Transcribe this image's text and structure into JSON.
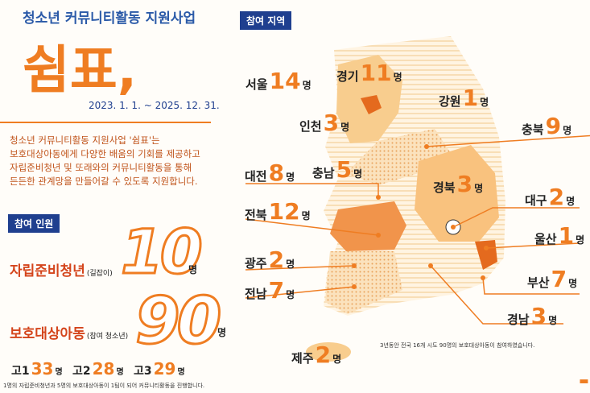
{
  "header": {
    "title": "청소년 커뮤니티활동 지원사업",
    "logo": "쉼표,",
    "period": "2023. 1. 1. ~ 2025. 12. 31."
  },
  "intro": [
    "청소년 커뮤니티활동 지원사업 '쉼표'는",
    "보호대상아동에게 다양한 배움의 기회를 제공하고",
    "자립준비청년 및 또래와의 커뮤니티활동을 통해",
    "든든한 관계망을 만들어갈 수 있도록 지원합니다."
  ],
  "participants": {
    "heading": "참여 인원",
    "unit": "명",
    "groups": [
      {
        "name": "자립준비청년",
        "note": "(길잡이)",
        "count": 10
      },
      {
        "name": "보호대상아동",
        "note": "(참여 청소년)",
        "count": 90
      }
    ],
    "grades": [
      {
        "label": "고1",
        "count": 33
      },
      {
        "label": "고2",
        "count": 28
      },
      {
        "label": "고3",
        "count": 29
      }
    ],
    "footnote": "1명의 자립준비청년과 5명의 보호대상아동이 1팀이 되어 커뮤니티활동을 진행합니다."
  },
  "regions": {
    "heading": "참여 지역",
    "unit": "명",
    "items": [
      {
        "name": "서울",
        "count": 14
      },
      {
        "name": "경기",
        "count": 11
      },
      {
        "name": "강원",
        "count": 1
      },
      {
        "name": "인천",
        "count": 3
      },
      {
        "name": "충북",
        "count": 9
      },
      {
        "name": "충남",
        "count": 5
      },
      {
        "name": "대전",
        "count": 8
      },
      {
        "name": "경북",
        "count": 3
      },
      {
        "name": "대구",
        "count": 2
      },
      {
        "name": "전북",
        "count": 12
      },
      {
        "name": "울산",
        "count": 1
      },
      {
        "name": "광주",
        "count": 2
      },
      {
        "name": "부산",
        "count": 7
      },
      {
        "name": "전남",
        "count": 7
      },
      {
        "name": "경남",
        "count": 3
      },
      {
        "name": "제주",
        "count": 2
      }
    ],
    "footnote": "3년동안 전국 16개 시도 90명의 보호대상아동이 참여하였습니다."
  }
}
